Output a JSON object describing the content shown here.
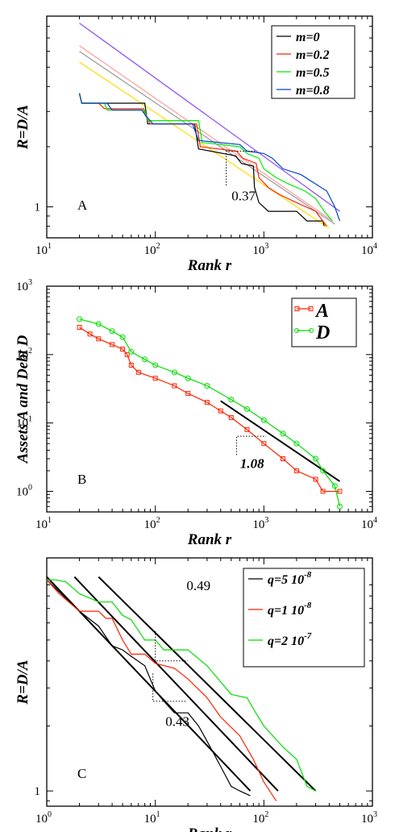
{
  "chart_data": [
    {
      "panel": "A",
      "type": "line",
      "xlabel": "Rank r",
      "ylabel": "R=D/A",
      "xscale": "log",
      "yscale": "log",
      "xlim": [
        10,
        10000
      ],
      "ylim": [
        0.7,
        9
      ],
      "xticks": [
        {
          "value": 10,
          "base": "10",
          "exp": "1"
        },
        {
          "value": 100,
          "base": "10",
          "exp": "2"
        },
        {
          "value": 1000,
          "base": "10",
          "exp": "3"
        },
        {
          "value": 10000,
          "base": "10",
          "exp": "4"
        }
      ],
      "yticks": [
        {
          "value": 1,
          "label": "1"
        }
      ],
      "panel_label": "A",
      "annotation": {
        "text": "0.37",
        "x": 650,
        "y": 1.08
      },
      "slope_triangle": {
        "x1": 450,
        "x2": 830,
        "y1": 1.28,
        "y2": 1.9
      },
      "legend": {
        "position": "top-right"
      },
      "series": [
        {
          "name": "m=0",
          "color": "#000000",
          "points": [
            [
              20,
              3.7
            ],
            [
              21,
              3.3
            ],
            [
              80,
              3.3
            ],
            [
              85,
              2.6
            ],
            [
              230,
              2.6
            ],
            [
              250,
              1.95
            ],
            [
              550,
              1.8
            ],
            [
              620,
              1.65
            ],
            [
              800,
              1.6
            ],
            [
              820,
              1.25
            ],
            [
              900,
              1.05
            ],
            [
              1100,
              0.95
            ],
            [
              2000,
              0.95
            ],
            [
              2500,
              0.85
            ],
            [
              3500,
              0.85
            ],
            [
              3600,
              0.8
            ]
          ]
        },
        {
          "name": "m=0.2",
          "color": "#ff2200",
          "points": [
            [
              20,
              3.7
            ],
            [
              21,
              3.3
            ],
            [
              30,
              3.3
            ],
            [
              34,
              3.1
            ],
            [
              78,
              3.1
            ],
            [
              80,
              2.9
            ],
            [
              90,
              2.6
            ],
            [
              240,
              2.6
            ],
            [
              260,
              2.0
            ],
            [
              560,
              1.9
            ],
            [
              640,
              1.75
            ],
            [
              850,
              1.65
            ],
            [
              900,
              1.4
            ],
            [
              1100,
              1.25
            ],
            [
              1400,
              1.15
            ],
            [
              2000,
              1.05
            ],
            [
              3000,
              0.95
            ],
            [
              3800,
              0.8
            ]
          ]
        },
        {
          "name": "m=0.5",
          "color": "#00ee00",
          "points": [
            [
              20,
              3.7
            ],
            [
              21,
              3.3
            ],
            [
              34,
              3.3
            ],
            [
              36,
              3.05
            ],
            [
              80,
              3.05
            ],
            [
              85,
              2.7
            ],
            [
              250,
              2.7
            ],
            [
              270,
              2.1
            ],
            [
              600,
              2.0
            ],
            [
              700,
              1.85
            ],
            [
              900,
              1.75
            ],
            [
              1000,
              1.55
            ],
            [
              1300,
              1.4
            ],
            [
              1700,
              1.3
            ],
            [
              2400,
              1.2
            ],
            [
              3000,
              1.1
            ],
            [
              3600,
              0.95
            ],
            [
              4300,
              0.85
            ]
          ]
        },
        {
          "name": "m=0.8",
          "color": "#0044cc",
          "points": [
            [
              20,
              3.7
            ],
            [
              21,
              3.3
            ],
            [
              36,
              3.3
            ],
            [
              40,
              3.05
            ],
            [
              75,
              3.05
            ],
            [
              80,
              2.9
            ],
            [
              95,
              2.6
            ],
            [
              220,
              2.6
            ],
            [
              250,
              2.15
            ],
            [
              600,
              2.05
            ],
            [
              700,
              1.9
            ],
            [
              1000,
              1.85
            ],
            [
              1200,
              1.75
            ],
            [
              1500,
              1.55
            ],
            [
              2200,
              1.45
            ],
            [
              3000,
              1.3
            ],
            [
              3800,
              1.2
            ],
            [
              4500,
              1.0
            ],
            [
              5000,
              0.85
            ]
          ]
        }
      ],
      "fits": [
        {
          "color": "#8844ff",
          "points": [
            [
              20,
              8.3
            ],
            [
              5000,
              0.95
            ]
          ]
        },
        {
          "color": "#ff9999",
          "points": [
            [
              20,
              6.4
            ],
            [
              4300,
              0.85
            ]
          ]
        },
        {
          "color": "#999999",
          "points": [
            [
              20,
              6.0
            ],
            [
              4500,
              0.82
            ]
          ]
        },
        {
          "color": "#ffdd00",
          "points": [
            [
              20,
              5.3
            ],
            [
              4000,
              0.78
            ]
          ]
        }
      ]
    },
    {
      "panel": "B",
      "type": "scatter",
      "xlabel": "Rank r",
      "ylabel": "Assets A and Debt  D",
      "xscale": "log",
      "yscale": "log",
      "xlim": [
        10,
        10000
      ],
      "ylim": [
        0.5,
        1000
      ],
      "xticks": [
        {
          "value": 10,
          "base": "10",
          "exp": "1"
        },
        {
          "value": 100,
          "base": "10",
          "exp": "2"
        },
        {
          "value": 1000,
          "base": "10",
          "exp": "3"
        },
        {
          "value": 10000,
          "base": "10",
          "exp": "4"
        }
      ],
      "yticks": [
        {
          "value": 1,
          "base": "10",
          "exp": "0"
        },
        {
          "value": 10,
          "base": "10",
          "exp": "1"
        },
        {
          "value": 100,
          "base": "10",
          "exp": "2"
        },
        {
          "value": 1000,
          "base": "10",
          "exp": "3"
        }
      ],
      "panel_label": "B",
      "annotation": {
        "text": "1.08",
        "x": 780,
        "y": 2.2
      },
      "slope_triangle": {
        "x1": 560,
        "x2": 1050,
        "y1": 3.4,
        "y2": 6.4
      },
      "legend": {
        "position": "top-right"
      },
      "series": [
        {
          "name": "A",
          "color": "#ff2200",
          "marker": "square",
          "points": [
            [
              20,
              250
            ],
            [
              25,
              200
            ],
            [
              30,
              170
            ],
            [
              40,
              140
            ],
            [
              50,
              120
            ],
            [
              55,
              100
            ],
            [
              60,
              70
            ],
            [
              70,
              55
            ],
            [
              100,
              45
            ],
            [
              150,
              35
            ],
            [
              200,
              27
            ],
            [
              300,
              20
            ],
            [
              400,
              15
            ],
            [
              500,
              12
            ],
            [
              700,
              8
            ],
            [
              1000,
              5
            ],
            [
              1500,
              3
            ],
            [
              2000,
              2
            ],
            [
              3000,
              1.5
            ],
            [
              3500,
              1
            ],
            [
              5000,
              1
            ]
          ]
        },
        {
          "name": "D",
          "color": "#00dd00",
          "marker": "circle",
          "points": [
            [
              20,
              330
            ],
            [
              30,
              280
            ],
            [
              40,
              220
            ],
            [
              50,
              180
            ],
            [
              60,
              110
            ],
            [
              80,
              85
            ],
            [
              100,
              70
            ],
            [
              150,
              55
            ],
            [
              200,
              45
            ],
            [
              300,
              35
            ],
            [
              500,
              22
            ],
            [
              700,
              16
            ],
            [
              1000,
              11
            ],
            [
              1500,
              7
            ],
            [
              2000,
              5
            ],
            [
              3000,
              3
            ],
            [
              3500,
              2
            ],
            [
              4500,
              1.2
            ],
            [
              5000,
              0.6
            ]
          ]
        }
      ],
      "fits": [
        {
          "color": "#000000",
          "points": [
            [
              400,
              21
            ],
            [
              5000,
              1.4
            ]
          ]
        }
      ]
    },
    {
      "panel": "C",
      "type": "line",
      "xlabel": "Rank r",
      "ylabel": "R=D/A",
      "xscale": "log",
      "yscale": "log",
      "xlim": [
        1,
        1000
      ],
      "ylim": [
        0.85,
        12
      ],
      "xticks": [
        {
          "value": 1,
          "base": "10",
          "exp": "0"
        },
        {
          "value": 10,
          "base": "10",
          "exp": "1"
        },
        {
          "value": 100,
          "base": "10",
          "exp": "2"
        },
        {
          "value": 1000,
          "base": "10",
          "exp": "3"
        }
      ],
      "yticks": [
        {
          "value": 1,
          "label": "1"
        }
      ],
      "panel_label": "C",
      "annotations": [
        {
          "text": "0.49",
          "x": 25,
          "y": 8.5
        },
        {
          "text": "0.43",
          "x": 16,
          "y": 2.0
        }
      ],
      "slope_triangles": [
        {
          "x1": 10,
          "x2": 20,
          "y1": 5.5,
          "y2": 4.0
        },
        {
          "x1": 9.5,
          "x2": 19,
          "y1": 3.5,
          "y2": 2.6
        }
      ],
      "legend": {
        "position": "top-right"
      },
      "series": [
        {
          "name": "q=5 10",
          "name_sup": "-8",
          "color": "#000000",
          "points": [
            [
              1,
              9.5
            ],
            [
              1.5,
              7.8
            ],
            [
              2,
              6.8
            ],
            [
              3,
              5.8
            ],
            [
              4,
              4.7
            ],
            [
              5,
              4.5
            ],
            [
              6,
              4.2
            ],
            [
              8,
              3.8
            ],
            [
              10,
              2.9
            ],
            [
              12,
              2.6
            ],
            [
              15,
              2.3
            ],
            [
              20,
              2.3
            ],
            [
              25,
              2.0
            ],
            [
              30,
              1.7
            ],
            [
              40,
              1.3
            ],
            [
              50,
              1.05
            ],
            [
              60,
              1.0
            ],
            [
              75,
              0.95
            ]
          ]
        },
        {
          "name": "q=1 10",
          "name_sup": "-8",
          "color": "#ff2200",
          "points": [
            [
              1,
              9.5
            ],
            [
              1.3,
              8.2
            ],
            [
              2,
              6.8
            ],
            [
              3,
              6.8
            ],
            [
              3.5,
              6.3
            ],
            [
              4,
              6.3
            ],
            [
              5,
              5.0
            ],
            [
              6,
              4.3
            ],
            [
              8,
              4.3
            ],
            [
              10,
              3.9
            ],
            [
              15,
              3.7
            ],
            [
              20,
              3.3
            ],
            [
              30,
              2.7
            ],
            [
              40,
              2.2
            ],
            [
              60,
              1.8
            ],
            [
              80,
              1.4
            ],
            [
              100,
              1.1
            ],
            [
              130,
              0.9
            ]
          ]
        },
        {
          "name": "q=2 10",
          "name_sup": "-7",
          "color": "#00dd00",
          "points": [
            [
              1,
              9.5
            ],
            [
              1.2,
              9.5
            ],
            [
              1.5,
              9.3
            ],
            [
              2,
              8.2
            ],
            [
              3,
              7.5
            ],
            [
              4,
              7.5
            ],
            [
              5,
              6.5
            ],
            [
              6,
              6.2
            ],
            [
              8,
              5.0
            ],
            [
              10,
              5.0
            ],
            [
              12,
              4.5
            ],
            [
              20,
              4.5
            ],
            [
              30,
              3.8
            ],
            [
              50,
              2.8
            ],
            [
              70,
              2.7
            ],
            [
              80,
              2.4
            ],
            [
              100,
              2.0
            ],
            [
              150,
              1.6
            ],
            [
              200,
              1.4
            ],
            [
              250,
              1.05
            ],
            [
              300,
              1.0
            ]
          ]
        }
      ],
      "fits": [
        {
          "color": "#000000",
          "points": [
            [
              1,
              9.8
            ],
            [
              75,
              1.0
            ]
          ]
        },
        {
          "color": "#000000",
          "points": [
            [
              1.8,
              9.8
            ],
            [
              135,
              1.0
            ]
          ]
        },
        {
          "color": "#000000",
          "points": [
            [
              3,
              9.8
            ],
            [
              300,
              1.0
            ]
          ]
        }
      ]
    }
  ]
}
